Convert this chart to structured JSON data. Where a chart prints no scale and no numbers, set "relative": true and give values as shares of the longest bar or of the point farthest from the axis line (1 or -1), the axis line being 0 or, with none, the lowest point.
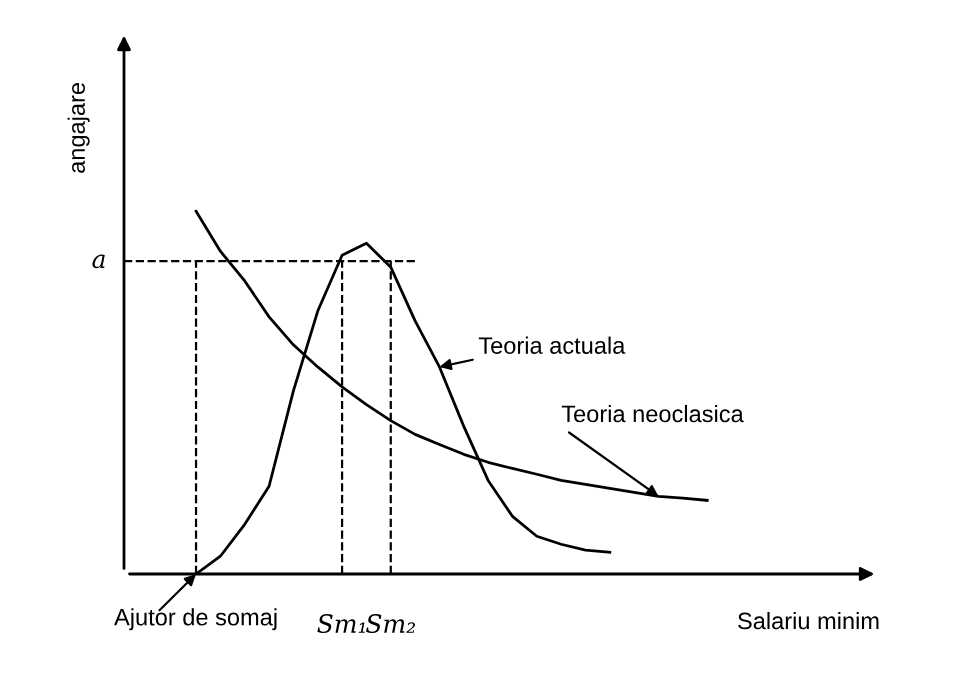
{
  "chart_data": {
    "type": "line",
    "relative": true,
    "xlabel": "Salariu minim",
    "ylabel": "angajare",
    "tick_labels": "x",
    "marker": "none",
    "line_style": "solid",
    "categories": [
      "Ajutor de somaj",
      null,
      null,
      null,
      null,
      null,
      "Sm₁",
      null,
      "Sm₂",
      null,
      null,
      null,
      null,
      null,
      null,
      null,
      null,
      null,
      null,
      null,
      null,
      null
    ],
    "series": [
      {
        "name": "Teoria neoclasica",
        "color": "#000000",
        "values": [
          1.0,
          0.89,
          0.808,
          0.709,
          0.632,
          0.571,
          0.516,
          0.467,
          0.423,
          0.385,
          0.357,
          0.33,
          0.308,
          0.291,
          0.275,
          0.258,
          0.247,
          0.236,
          0.225,
          0.214,
          0.209,
          0.203
        ]
      },
      {
        "name": "Teoria actuala",
        "color": "#000000",
        "values": [
          0,
          0.049,
          0.137,
          0.242,
          0.505,
          0.725,
          0.879,
          0.912,
          0.846,
          0.698,
          0.571,
          0.407,
          0.258,
          0.159,
          0.104,
          0.082,
          0.066,
          0.06,
          null,
          null,
          null,
          null
        ]
      }
    ],
    "ref_lines": [
      {
        "axis": "y",
        "value": 0.863,
        "label": "a",
        "line_style": "dashed"
      },
      {
        "axis": "x",
        "value": "Ajutor de somaj",
        "line_style": "dashed"
      },
      {
        "axis": "x",
        "value": "Sm₁",
        "line_style": "dashed"
      },
      {
        "axis": "x",
        "value": "Sm₂",
        "line_style": "dashed"
      }
    ]
  }
}
